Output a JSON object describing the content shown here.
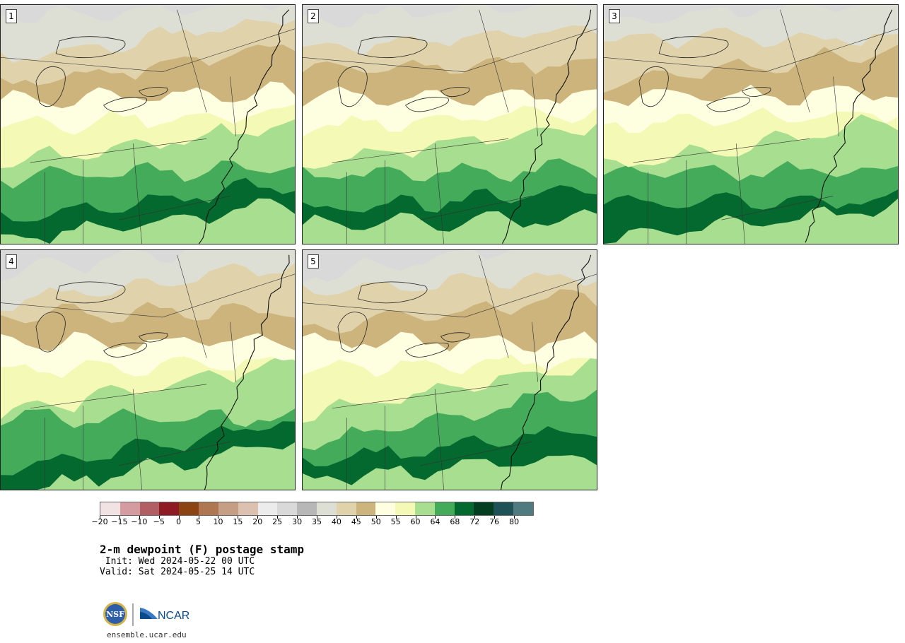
{
  "title": "2-m dewpoint (F) postage stamp",
  "init_line": " Init: Wed 2024-05-22 00 UTC",
  "valid_line": "Valid: Sat 2024-05-25 14 UTC",
  "url": "ensemble.ucar.edu",
  "logos": {
    "nsf": "NSF",
    "ncar": "NCAR"
  },
  "panels": [
    {
      "label": "1",
      "seed": 11
    },
    {
      "label": "2",
      "seed": 22
    },
    {
      "label": "3",
      "seed": 33
    },
    {
      "label": "4",
      "seed": 44
    },
    {
      "label": "5",
      "seed": 55
    }
  ],
  "colorbar": {
    "colors": [
      "#f1e3e3",
      "#d49ca1",
      "#b15f65",
      "#8e1a24",
      "#8c4512",
      "#ae7752",
      "#c59e84",
      "#dcc0b0",
      "#ececec",
      "#d9d9d9",
      "#b7b7b7",
      "#dedfd4",
      "#e0d3ac",
      "#ccb47c",
      "#fefee1",
      "#f4fab5",
      "#a8de8f",
      "#44ab5a",
      "#04692f",
      "#053d21",
      "#1f5256",
      "#4f7a80"
    ],
    "ticks": [
      "−20",
      "−15",
      "−10",
      "−5",
      "0",
      "5",
      "10",
      "15",
      "20",
      "25",
      "30",
      "35",
      "40",
      "45",
      "50",
      "55",
      "60",
      "64",
      "68",
      "72",
      "76",
      "80"
    ]
  }
}
